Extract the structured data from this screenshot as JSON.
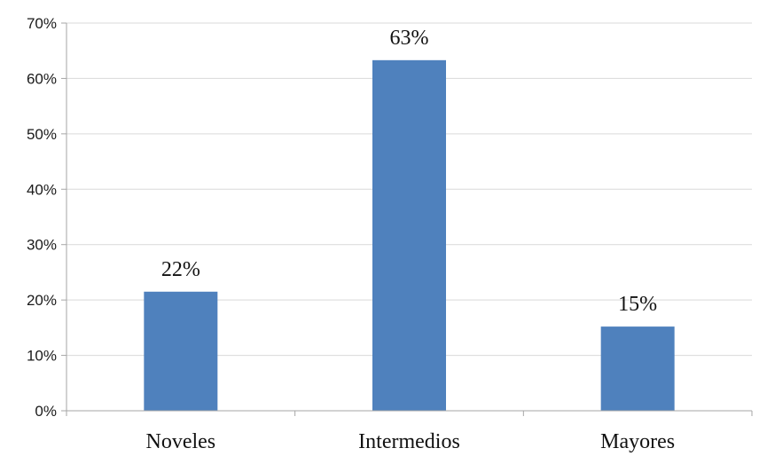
{
  "chart_data": {
    "type": "bar",
    "categories": [
      "Noveles",
      "Intermedios",
      "Mayores"
    ],
    "values": [
      21.5,
      63.3,
      15.2
    ],
    "data_labels": [
      "22%",
      "63%",
      "15%"
    ],
    "y_ticks": [
      "0%",
      "10%",
      "20%",
      "30%",
      "40%",
      "50%",
      "60%",
      "70%"
    ],
    "ylim": [
      0,
      70
    ],
    "grid": true,
    "bar_color": "#4f81bd",
    "title": "",
    "xlabel": "",
    "ylabel": ""
  }
}
